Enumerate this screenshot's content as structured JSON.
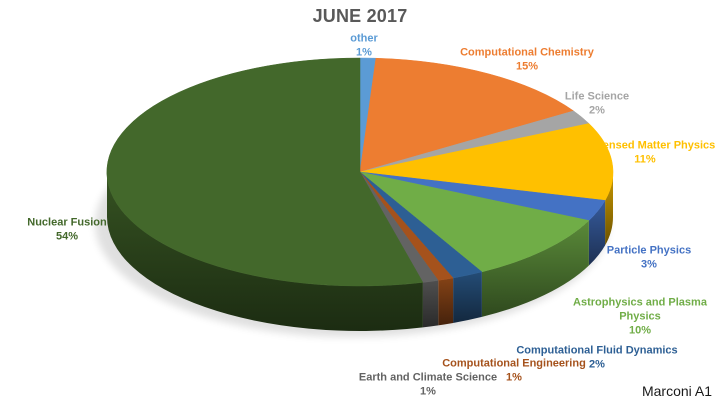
{
  "footnote": "Marconi A1",
  "chart_data": {
    "type": "pie",
    "style": "3d",
    "title": "JUNE 2017",
    "unit": "%",
    "legend_position": "none",
    "labels_position": "outside, colored to match slice",
    "slices": [
      {
        "label": "other",
        "value": 1,
        "color": "#5B9BD5"
      },
      {
        "label": "Computational Chemistry",
        "value": 15,
        "color": "#ED7D31"
      },
      {
        "label": "Life Science",
        "value": 2,
        "color": "#A5A5A5"
      },
      {
        "label": "Condensed Matter Physics",
        "value": 11,
        "color": "#FFC000"
      },
      {
        "label": "Particle Physics",
        "value": 3,
        "color": "#4472C4"
      },
      {
        "label": "Astrophysics and Plasma Physics",
        "value": 10,
        "color": "#70AD47"
      },
      {
        "label": "Computational Fluid Dynamics",
        "value": 2,
        "color": "#2D5F94"
      },
      {
        "label": "Computational Engineering",
        "value": 1,
        "color": "#A5521C"
      },
      {
        "label": "Earth and Climate Science",
        "value": 1,
        "color": "#636363"
      },
      {
        "label": "Nuclear Fusion",
        "value": 54,
        "color": "#43682B"
      }
    ]
  }
}
